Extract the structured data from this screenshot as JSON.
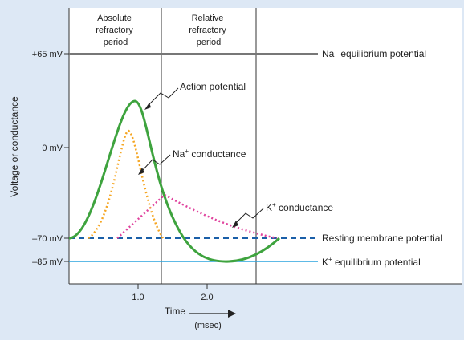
{
  "regions": {
    "absolute": [
      "Absolute",
      "refractory",
      "period"
    ],
    "relative": [
      "Relative",
      "refractory",
      "period"
    ]
  },
  "y_axis": {
    "label": "Voltage or conductance",
    "ticks": {
      "plus65": "+65 mV",
      "zero": "0 mV",
      "minus70": "–70 mV",
      "minus85": "–85 mV"
    }
  },
  "x_axis": {
    "label": "Time",
    "unit": "(msec)",
    "ticks": [
      "1.0",
      "2.0"
    ]
  },
  "annotations": {
    "action_potential": "Action potential",
    "na_conductance_base": "Na",
    "na_conductance_rest": " conductance",
    "k_conductance_base": "K",
    "k_conductance_rest": " conductance",
    "sup_plus": "+"
  },
  "reference_lines": {
    "na_equilibrium_base": "Na",
    "na_equilibrium_rest": " equilibrium potential",
    "resting": "Resting membrane potential",
    "k_equilibrium_base": "K",
    "k_equilibrium_rest": " equilibrium potential"
  },
  "colors": {
    "background": "#dde8f5",
    "plot_area": "#ffffff",
    "action_potential": "#3ea33e",
    "na_conductance": "#f5a623",
    "k_conductance": "#e0449e",
    "resting_line": "#1a5fa8",
    "k_equilibrium_line": "#29a3dd",
    "na_equilibrium_line": "#777777"
  }
}
